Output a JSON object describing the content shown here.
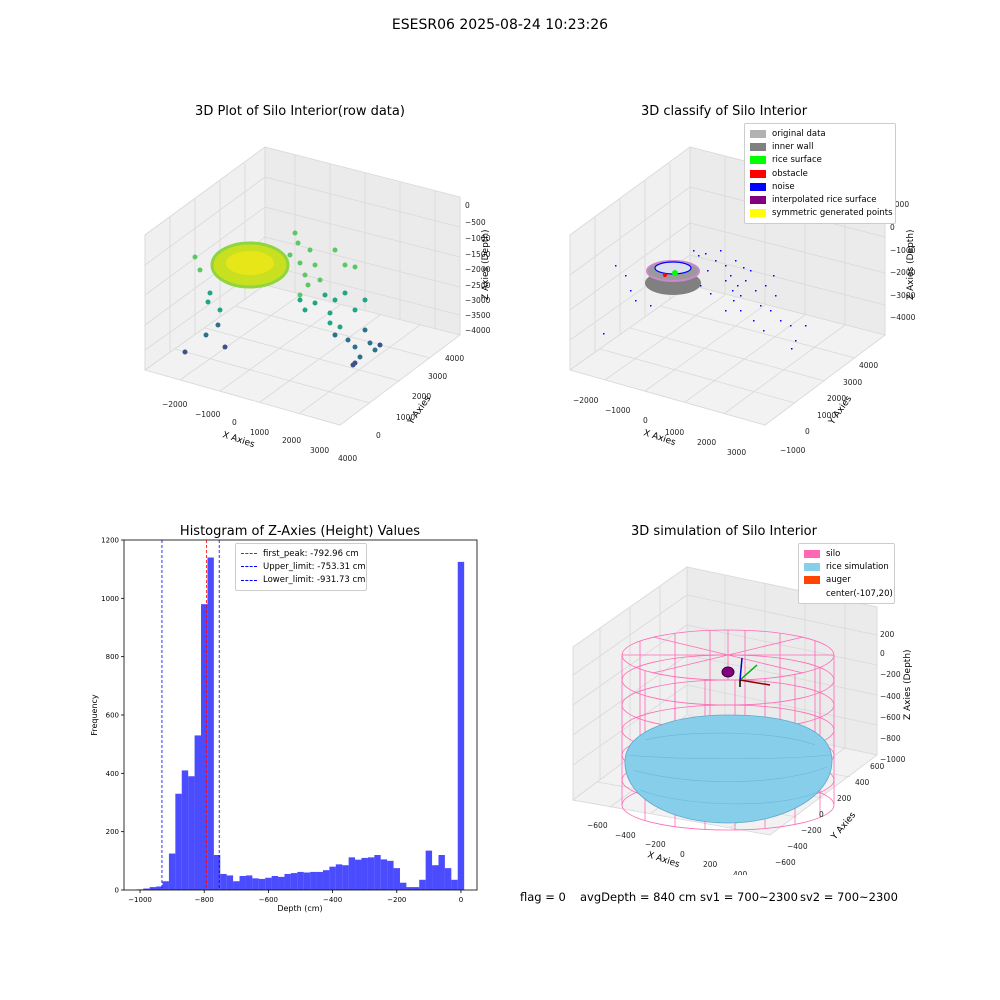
{
  "figure": {
    "suptitle": "ESESR06 2025-08-24 10:23:26"
  },
  "panels": {
    "raw": {
      "title": "3D Plot of Silo Interior(row data)",
      "xlabel": "X Axies",
      "ylabel": "Y Axies",
      "zlabel": "Z Axies (Depth)",
      "xticks": [
        "−2000",
        "−1000",
        "0",
        "1000",
        "2000",
        "3000",
        "4000"
      ],
      "yticks": [
        "0",
        "1000",
        "2000",
        "3000",
        "4000"
      ],
      "zticks": [
        "0",
        "−500",
        "−1000",
        "−1500",
        "−2000",
        "−2500",
        "−3000",
        "−3500",
        "−4000"
      ]
    },
    "classify": {
      "title": "3D classify of Silo Interior",
      "xlabel": "X Axies",
      "ylabel": "Y Axies",
      "zlabel": "Z Axies (Depth)",
      "xticks": [
        "−2000",
        "−1000",
        "0",
        "1000",
        "2000",
        "3000"
      ],
      "yticks": [
        "−1000",
        "0",
        "1000",
        "2000",
        "3000",
        "4000"
      ],
      "zticks": [
        "1000",
        "0",
        "−1000",
        "−2000",
        "−3000",
        "−4000"
      ],
      "legend": [
        {
          "label": "original data",
          "color": "#b2b2b2"
        },
        {
          "label": "inner wall",
          "color": "#808080"
        },
        {
          "label": "rice surface",
          "color": "#00ff00"
        },
        {
          "label": "obstacle",
          "color": "#ff0000"
        },
        {
          "label": "noise",
          "color": "#0000ff"
        },
        {
          "label": "interpolated rice surface",
          "color": "#800080"
        },
        {
          "label": "symmetric generated points",
          "color": "#ffff00"
        }
      ]
    },
    "simulation": {
      "title": "3D simulation of Silo Interior",
      "xlabel": "X Axies",
      "ylabel": "Y Axies",
      "zlabel": "Z Axies (Depth)",
      "xticks": [
        "−600",
        "−400",
        "−200",
        "0",
        "200",
        "400"
      ],
      "yticks": [
        "−600",
        "−400",
        "−200",
        "0",
        "200",
        "400",
        "600"
      ],
      "zticks": [
        "200",
        "0",
        "−200",
        "−400",
        "−600",
        "−800",
        "−1000"
      ],
      "legend": [
        {
          "label": "silo",
          "color": "#ff69b4"
        },
        {
          "label": "rice simulation",
          "color": "#87ceeb"
        },
        {
          "label": "auger",
          "color": "#ff4500"
        },
        {
          "label": "center(-107,20)",
          "color": ""
        }
      ]
    }
  },
  "footer": {
    "flag": "flag = 0",
    "avg": "avgDepth = 840 cm",
    "sv1": "sv1 = 700~2300",
    "sv2": "sv2 = 700~2300"
  },
  "chart_data": {
    "type": "bar",
    "title": "Histogram of Z-Axies (Height) Values",
    "xlabel": "Depth (cm)",
    "ylabel": "Frequency",
    "xlim": [
      -1050,
      50
    ],
    "ylim": [
      0,
      1200
    ],
    "xticks": [
      -1000,
      -800,
      -600,
      -400,
      -200,
      0
    ],
    "yticks": [
      0,
      200,
      400,
      600,
      800,
      1000,
      1200
    ],
    "bin_width": 20,
    "color": "#0000ff",
    "bins": [
      {
        "x": -1000,
        "v": 2
      },
      {
        "x": -980,
        "v": 5
      },
      {
        "x": -960,
        "v": 10
      },
      {
        "x": -940,
        "v": 12
      },
      {
        "x": -920,
        "v": 30
      },
      {
        "x": -900,
        "v": 125
      },
      {
        "x": -880,
        "v": 330
      },
      {
        "x": -860,
        "v": 410
      },
      {
        "x": -840,
        "v": 390
      },
      {
        "x": -820,
        "v": 530
      },
      {
        "x": -800,
        "v": 980
      },
      {
        "x": -780,
        "v": 1140
      },
      {
        "x": -760,
        "v": 120
      },
      {
        "x": -740,
        "v": 55
      },
      {
        "x": -720,
        "v": 50
      },
      {
        "x": -700,
        "v": 30
      },
      {
        "x": -680,
        "v": 48
      },
      {
        "x": -660,
        "v": 50
      },
      {
        "x": -640,
        "v": 40
      },
      {
        "x": -620,
        "v": 38
      },
      {
        "x": -600,
        "v": 42
      },
      {
        "x": -580,
        "v": 48
      },
      {
        "x": -560,
        "v": 45
      },
      {
        "x": -540,
        "v": 55
      },
      {
        "x": -520,
        "v": 58
      },
      {
        "x": -500,
        "v": 62
      },
      {
        "x": -480,
        "v": 60
      },
      {
        "x": -460,
        "v": 62
      },
      {
        "x": -440,
        "v": 62
      },
      {
        "x": -420,
        "v": 68
      },
      {
        "x": -400,
        "v": 80
      },
      {
        "x": -380,
        "v": 88
      },
      {
        "x": -360,
        "v": 85
      },
      {
        "x": -340,
        "v": 112
      },
      {
        "x": -320,
        "v": 104
      },
      {
        "x": -300,
        "v": 110
      },
      {
        "x": -280,
        "v": 112
      },
      {
        "x": -260,
        "v": 120
      },
      {
        "x": -240,
        "v": 105
      },
      {
        "x": -220,
        "v": 100
      },
      {
        "x": -200,
        "v": 75
      },
      {
        "x": -180,
        "v": 25
      },
      {
        "x": -160,
        "v": 10
      },
      {
        "x": -140,
        "v": 10
      },
      {
        "x": -120,
        "v": 35
      },
      {
        "x": -100,
        "v": 135
      },
      {
        "x": -80,
        "v": 85
      },
      {
        "x": -60,
        "v": 120
      },
      {
        "x": -40,
        "v": 75
      },
      {
        "x": -20,
        "v": 35
      },
      {
        "x": 0,
        "v": 1125
      }
    ],
    "vlines": [
      {
        "label": "first_peak: -792.96 cm",
        "x": -792.96,
        "color": "#ff0000"
      },
      {
        "label": "Upper_limit: -753.31 cm",
        "x": -753.31,
        "color": "#0000ff"
      },
      {
        "label": "Lower_limit: -931.73 cm",
        "x": -931.73,
        "color": "#0000ff"
      }
    ]
  }
}
